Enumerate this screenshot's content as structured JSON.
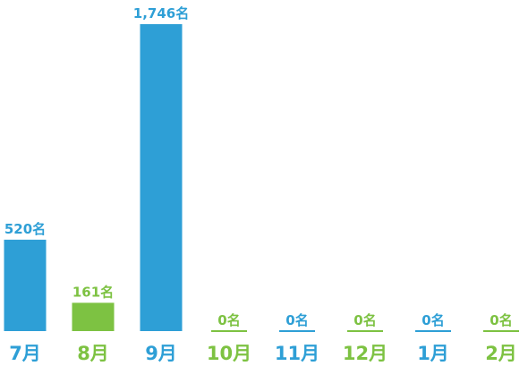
{
  "chart_data": {
    "type": "bar",
    "categories": [
      "7月",
      "8月",
      "9月",
      "10月",
      "11月",
      "12月",
      "1月",
      "2月"
    ],
    "values": [
      520,
      161,
      1746,
      0,
      0,
      0,
      0,
      0
    ],
    "value_labels": [
      "520名",
      "161名",
      "1,746名",
      "0名",
      "0名",
      "0名",
      "0名",
      "0名"
    ],
    "colors": [
      "#2e9fd6",
      "#7dc242",
      "#2e9fd6",
      "#7dc242",
      "#2e9fd6",
      "#7dc242",
      "#2e9fd6",
      "#7dc242"
    ]
  }
}
